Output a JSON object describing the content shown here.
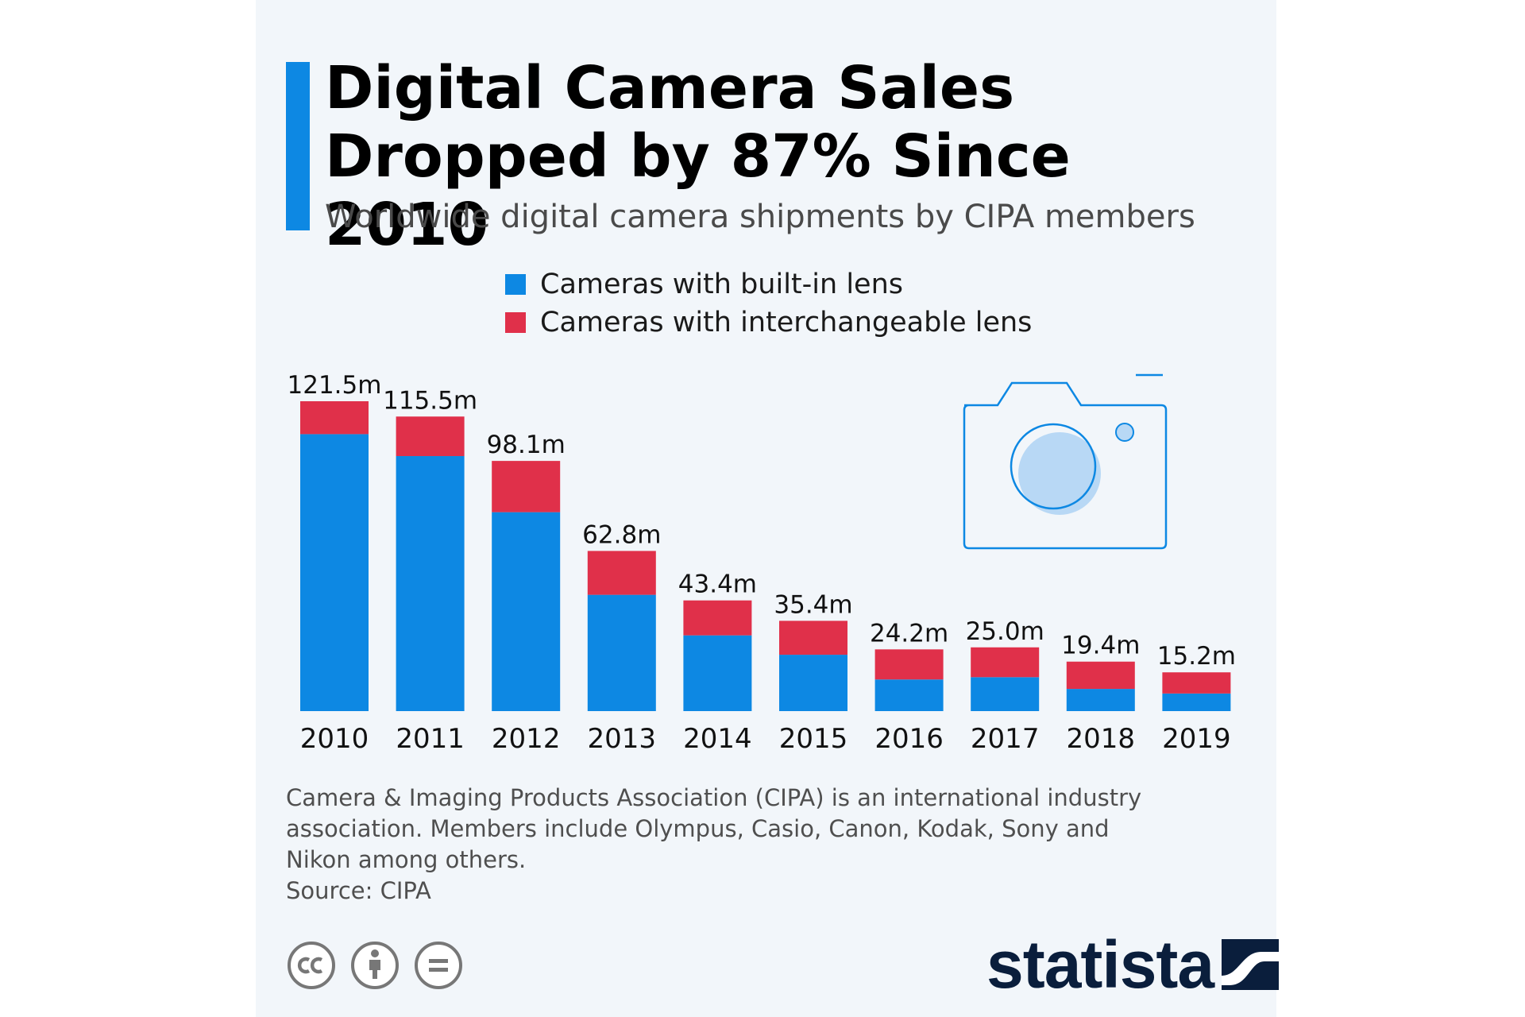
{
  "header": {
    "title_line1": "Digital Camera Sales",
    "title_line2": "Dropped by 87% Since 2010",
    "subtitle": "Worldwide digital camera shipments by CIPA members"
  },
  "colors": {
    "accent": "#0d88e3",
    "built_in": "#0d88e3",
    "interchangeable": "#e0304a",
    "background": "#f2f6fa"
  },
  "chart_data": {
    "type": "bar",
    "stacked": true,
    "title": "Digital Camera Sales Dropped by 87% Since 2010",
    "subtitle": "Worldwide digital camera shipments by CIPA members",
    "xlabel": "",
    "ylabel": "",
    "unit": "m",
    "categories": [
      "2010",
      "2011",
      "2012",
      "2013",
      "2014",
      "2015",
      "2016",
      "2017",
      "2018",
      "2019"
    ],
    "series": [
      {
        "name": "Cameras with built-in lens",
        "color": "#0d88e3",
        "values": [
          108.6,
          100.0,
          78.0,
          45.6,
          29.7,
          22.1,
          12.4,
          13.3,
          8.7,
          6.9
        ]
      },
      {
        "name": "Cameras with interchangeable lens",
        "color": "#e0304a",
        "values": [
          12.9,
          15.5,
          20.1,
          17.2,
          13.7,
          13.3,
          11.8,
          11.7,
          10.7,
          8.3
        ]
      }
    ],
    "totals": [
      121.5,
      115.5,
      98.1,
      62.8,
      43.4,
      35.4,
      24.2,
      25.0,
      19.4,
      15.2
    ],
    "total_labels": [
      "121.5m",
      "115.5m",
      "98.1m",
      "62.8m",
      "43.4m",
      "35.4m",
      "24.2m",
      "25.0m",
      "19.4m",
      "15.2m"
    ],
    "ylim": [
      0,
      121.5
    ],
    "grid": false,
    "legend_position": "top-center"
  },
  "illustration": {
    "icon": "camera-icon"
  },
  "note": {
    "line1": "Camera & Imaging Products Association (CIPA) is an international industry",
    "line2": "association. Members include Olympus, Casio, Canon, Kodak, Sony and",
    "line3": "Nikon among others.",
    "source": "Source: CIPA"
  },
  "license_icons": [
    "cc-icon",
    "attribution-icon",
    "no-derivatives-icon"
  ],
  "brand": {
    "name": "statista"
  }
}
